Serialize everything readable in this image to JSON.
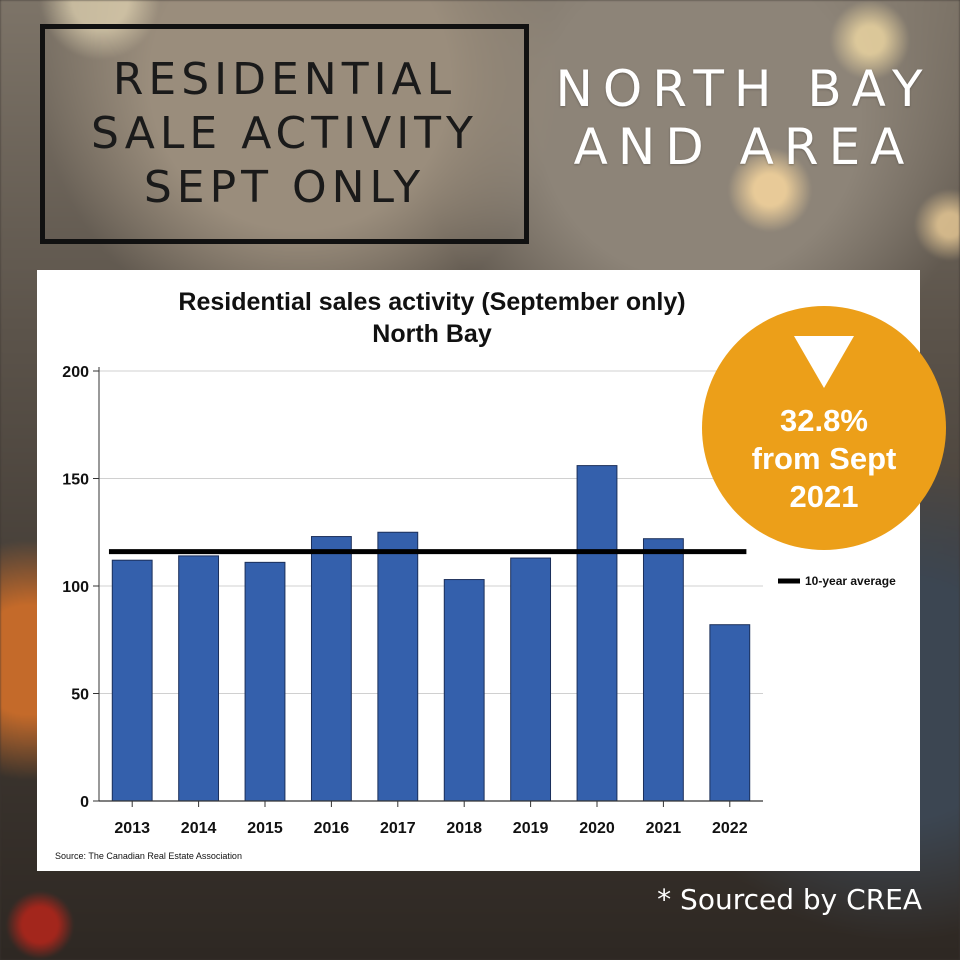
{
  "header": {
    "title_lines": [
      "RESIDENTIAL",
      "SALE ACTIVITY",
      "SEPT ONLY"
    ],
    "area_lines": [
      "NORTH BAY",
      "AND AREA"
    ]
  },
  "badge": {
    "icon": "down-triangle-icon",
    "lines": [
      "32.8%",
      "from Sept",
      "2021"
    ],
    "color": "#ec9f19"
  },
  "footer_note": "* Sourced by CREA",
  "chart_data": {
    "type": "bar",
    "title": "Residential sales activity (September only)",
    "subtitle": "North Bay",
    "categories": [
      "2013",
      "2014",
      "2015",
      "2016",
      "2017",
      "2018",
      "2019",
      "2020",
      "2021",
      "2022"
    ],
    "values": [
      112,
      114,
      111,
      123,
      125,
      103,
      113,
      156,
      122,
      82
    ],
    "bar_color": "#3460ac",
    "ylim": [
      0,
      200
    ],
    "yticks": [
      0,
      50,
      100,
      150,
      200
    ],
    "reference_line": {
      "name": "10-year average",
      "value": 116,
      "color": "#000000"
    },
    "grid": true,
    "legend": "right",
    "source": "Source: The Canadian Real Estate Association"
  }
}
